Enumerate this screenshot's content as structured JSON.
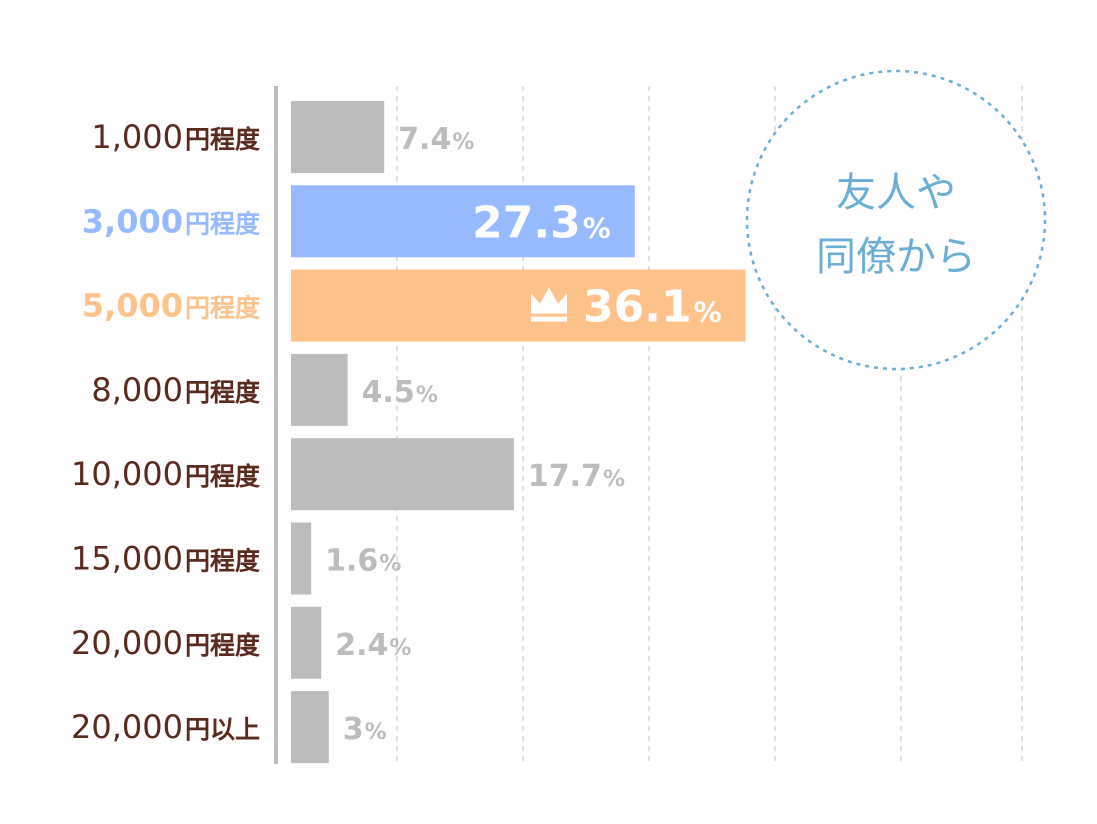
{
  "chart_data": {
    "type": "bar",
    "orientation": "horizontal",
    "categories": [
      {
        "num": "1,000",
        "unit": "円程度"
      },
      {
        "num": "3,000",
        "unit": "円程度"
      },
      {
        "num": "5,000",
        "unit": "円程度"
      },
      {
        "num": "8,000",
        "unit": "円程度"
      },
      {
        "num": "10,000",
        "unit": "円程度"
      },
      {
        "num": "15,000",
        "unit": "円程度"
      },
      {
        "num": "20,000",
        "unit": "円程度"
      },
      {
        "num": "20,000",
        "unit": "円以上"
      }
    ],
    "values": [
      7.4,
      27.3,
      36.1,
      4.5,
      17.7,
      1.6,
      2.4,
      3
    ],
    "value_labels": [
      "7.4",
      "27.3",
      "36.1",
      "4.5",
      "17.7",
      "1.6",
      "2.4",
      "3"
    ],
    "value_suffix": "%",
    "xlim": [
      0,
      64
    ],
    "grid": true,
    "highlights": [
      {
        "index": 1,
        "color": "#96baff",
        "label_inside": true,
        "crown": false
      },
      {
        "index": 2,
        "color": "#ffc28a",
        "label_inside": true,
        "crown": true
      }
    ],
    "colors": {
      "default_bar": "#bcbcbc",
      "default_value_label": "#bcbcbc",
      "default_category_label": "#5a2a1e",
      "inside_label": "#ffffff",
      "axis": "#bdbdbd",
      "grid": "#d6d6d6",
      "badge_border": "#6aaed6",
      "badge_text": "#6aaed6"
    },
    "badge": {
      "lines": [
        "友人や",
        "同僚から"
      ]
    }
  }
}
